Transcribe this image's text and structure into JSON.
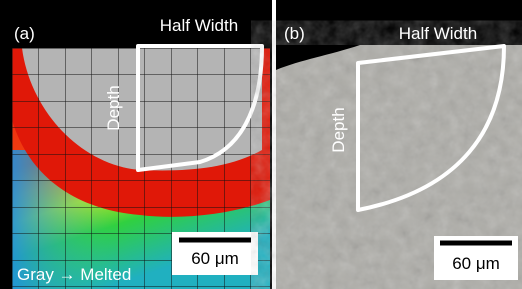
{
  "figure": {
    "panels": [
      {
        "label": "(a)",
        "header": "Half Width",
        "depth_label": "Depth",
        "scale_label": "60 μm",
        "note": "Gray → Melted"
      },
      {
        "label": "(b)",
        "header": "Half Width",
        "depth_label": "Depth",
        "scale_label": "60 μm"
      }
    ]
  }
}
